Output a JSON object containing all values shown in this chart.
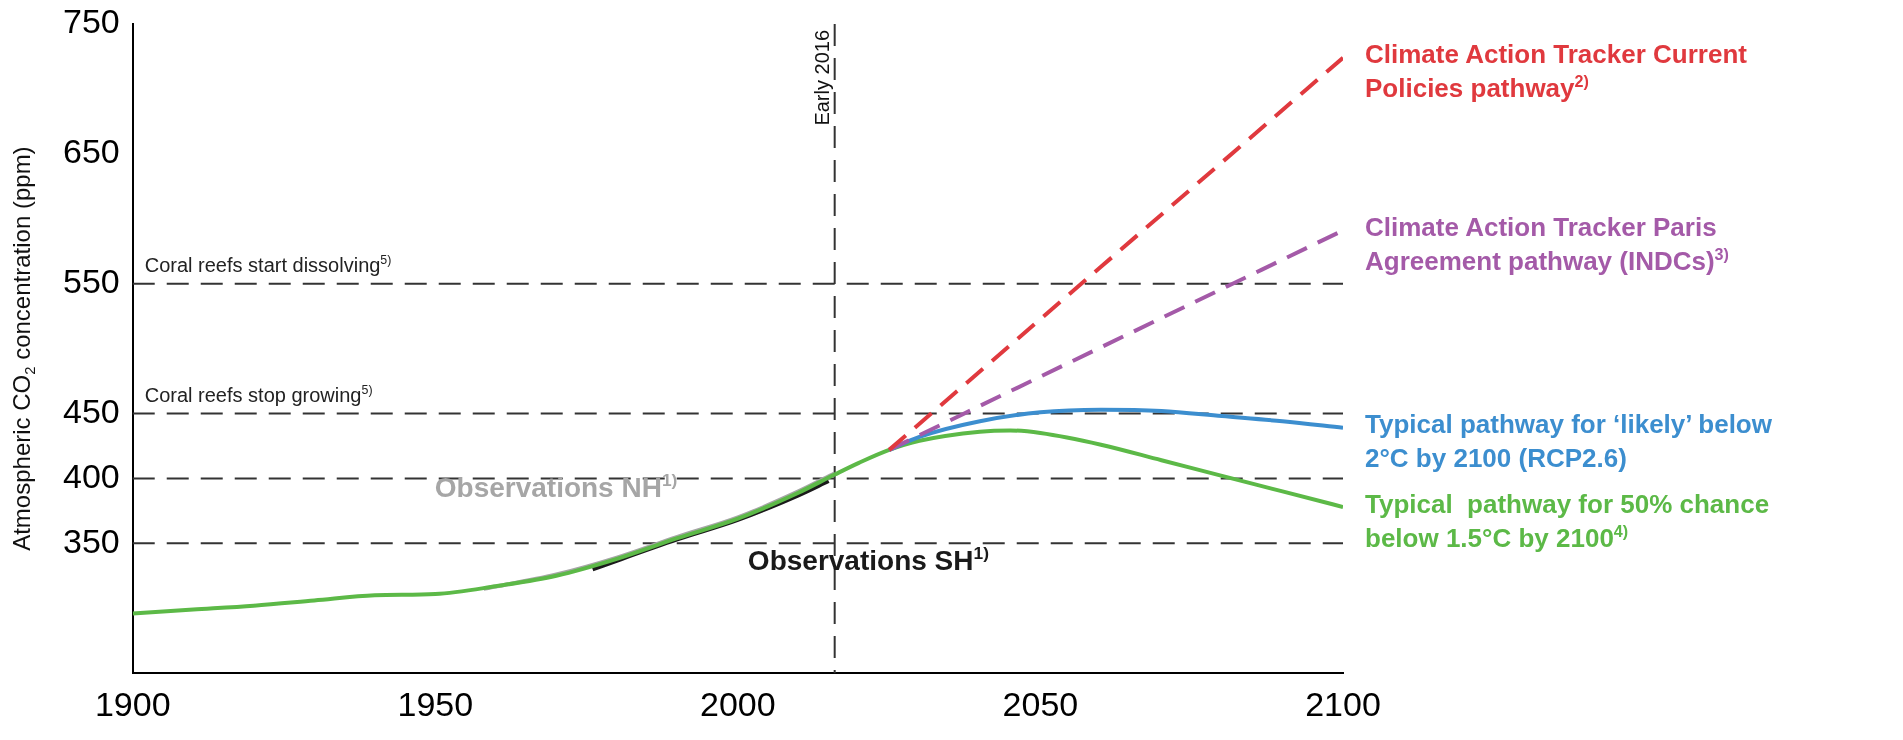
{
  "chart_data": {
    "type": "line",
    "ylabel": "Atmospheric CO$_{2}$ concentration (ppm)",
    "xlim": [
      1900,
      2100
    ],
    "xticks": [
      1900,
      1950,
      2000,
      2050,
      2100
    ],
    "ylim": [
      250,
      750
    ],
    "yticks": [
      350,
      400,
      450,
      550,
      650,
      750
    ],
    "grid": false,
    "legend": false,
    "marker": "none",
    "series": [
      {
        "name": "Climate Action Tracker Current Policies pathway$^{2)}$",
        "color": "#e0393e",
        "line_style": "dashed",
        "x": [
          2025,
          2060,
          2100
        ],
        "values": [
          422,
          563,
          724
        ]
      },
      {
        "name": "Climate Action Tracker Paris Agreement pathway (INDCs)$^{3)}$",
        "color": "#a45aa8",
        "line_style": "dashed",
        "x": [
          2025,
          2060,
          2100
        ],
        "values": [
          422,
          501,
          591
        ]
      },
      {
        "name": "Typical pathway for ‘likely’ below 2°C by 2100 (RCP2.6)",
        "color": "#3c8ecf",
        "line_style": "solid",
        "x": [
          2025,
          2030,
          2040,
          2050,
          2060,
          2070,
          2080,
          2090,
          2100
        ],
        "values": [
          422,
          432,
          444,
          451,
          453,
          452,
          448,
          444,
          439
        ]
      },
      {
        "name": "Typical  pathway for 50% chance below 1.5°C by 2100$^{4)}$",
        "color": "#5cb947",
        "line_style": "solid",
        "x": [
          1900,
          1910,
          1920,
          1930,
          1940,
          1950,
          1960,
          1970,
          1980,
          1990,
          2000,
          2010,
          2016,
          2020,
          2025,
          2030,
          2040,
          2045,
          2050,
          2060,
          2070,
          2080,
          2090,
          2100
        ],
        "values": [
          296,
          299,
          302,
          306,
          310,
          311,
          317,
          325,
          338,
          354,
          369,
          389,
          403,
          412,
          422,
          429,
          436,
          437,
          435,
          426,
          414,
          402,
          390,
          378
        ]
      },
      {
        "name": "Observations NH$^{1)}$",
        "color": "#a6a6a6",
        "line_style": "solid",
        "x": [
          1958,
          1970,
          1980,
          1990,
          2000,
          2010,
          2016
        ],
        "values": [
          315,
          326,
          339,
          355,
          370,
          390,
          404
        ]
      },
      {
        "name": "Observations SH$^{1)}$",
        "color": "#1a1a1a",
        "line_style": "solid",
        "x": [
          1976,
          1990,
          2000,
          2010,
          2015
        ],
        "values": [
          330,
          353,
          368,
          387,
          398
        ]
      }
    ],
    "ref_lines": [
      {
        "axis": "y",
        "value": 550,
        "label": "Coral reefs start dissolving$^{5)}$",
        "color": "#333333",
        "line_style": "dashed"
      },
      {
        "axis": "y",
        "value": 450,
        "label": "Coral reefs stop growing$^{5)}$",
        "color": "#333333",
        "line_style": "dashed"
      },
      {
        "axis": "y",
        "value": 400,
        "label": null,
        "color": "#333333",
        "line_style": "dashed"
      },
      {
        "axis": "y",
        "value": 350,
        "label": null,
        "color": "#333333",
        "line_style": "dashed"
      },
      {
        "axis": "x",
        "value": 2016,
        "label": "Early 2016",
        "color": "#333333",
        "line_style": "dashed"
      }
    ]
  }
}
